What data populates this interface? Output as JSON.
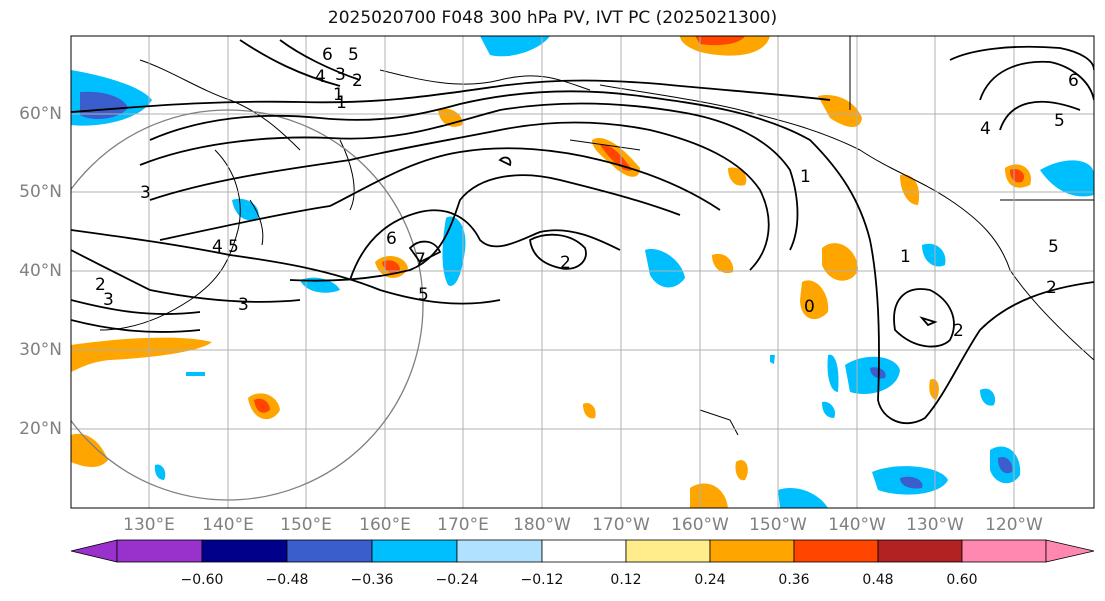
{
  "title": "2025020700 F048 300 hPa PV, IVT PC (2025021300)",
  "lat_labels": [
    "60°N",
    "50°N",
    "40°N",
    "30°N",
    "20°N"
  ],
  "lon_labels": [
    "130°E",
    "140°E",
    "150°E",
    "160°E",
    "170°E",
    "180°W",
    "170°W",
    "160°W",
    "150°W",
    "140°W",
    "130°W",
    "120°W"
  ],
  "contour_labels": [
    "6",
    "5",
    "4",
    "3",
    "2",
    "1",
    "3",
    "4",
    "5",
    "6",
    "7",
    "5",
    "3",
    "2",
    "3",
    "2",
    "1",
    "0",
    "1",
    "2",
    "2",
    "5",
    "6",
    "4",
    "5",
    "1"
  ],
  "colorbar": {
    "ticks": [
      "−0.60",
      "−0.48",
      "−0.36",
      "−0.24",
      "−0.12",
      "0.12",
      "0.24",
      "0.36",
      "0.48",
      "0.60"
    ],
    "colors": [
      "#9932cc",
      "#00008b",
      "#3a5fcd",
      "#00bfff",
      "#b0e2ff",
      "#ffffff",
      "#ffec8b",
      "#ffa500",
      "#ff4500",
      "#b22222",
      "#ff88b0"
    ]
  }
}
